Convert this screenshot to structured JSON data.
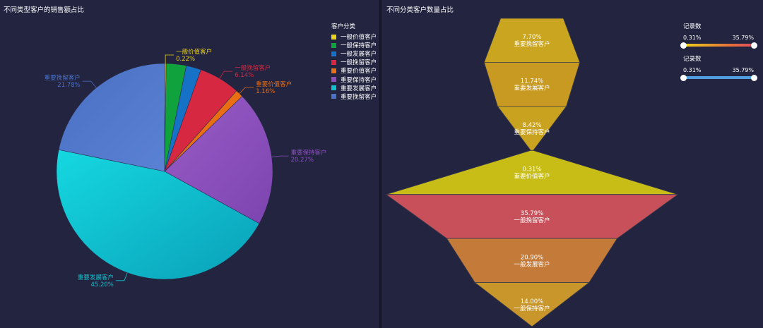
{
  "left_panel": {
    "title": "不同类型客户的销售额占比"
  },
  "right_panel": {
    "title": "不同分类客户数量占比"
  },
  "legend": {
    "title": "客户分类",
    "items": [
      {
        "label": "一般价值客户",
        "color": "#e8d41a"
      },
      {
        "label": "一般保持客户",
        "color": "#10a23c"
      },
      {
        "label": "一般发展客户",
        "color": "#1672c6"
      },
      {
        "label": "一般挽留客户",
        "color": "#d62841"
      },
      {
        "label": "重要价值客户",
        "color": "#ea6e14"
      },
      {
        "label": "重要保持客户",
        "color": "#8c4ebc"
      },
      {
        "label": "重要发展客户",
        "color": "#0ec2cd"
      },
      {
        "label": "重要挽留客户",
        "color": "#4b71c6"
      }
    ]
  },
  "sliders": [
    {
      "title": "记录数",
      "min_label": "0.31%",
      "max_label": "35.79%",
      "low_pct": 0,
      "high_pct": 100,
      "style": "warm"
    },
    {
      "title": "记录数",
      "min_label": "0.31%",
      "max_label": "35.79%",
      "low_pct": 0,
      "high_pct": 100,
      "style": "blue"
    }
  ],
  "chart_data": [
    {
      "type": "pie",
      "title": "不同类型客户的销售额占比",
      "legend_title": "客户分类",
      "legend_placement": "top-right",
      "slices": [
        {
          "name": "一般价值客户",
          "value": 0.22,
          "label": "一般价值客户",
          "value_label": "0.22%",
          "color": "#e8d41a"
        },
        {
          "name": "一般保持客户",
          "value": 3.0,
          "label": "",
          "value_label": "",
          "color": "#10a23c"
        },
        {
          "name": "一般发展客户",
          "value": 2.23,
          "label": "",
          "value_label": "",
          "color": "#1672c6"
        },
        {
          "name": "一般挽留客户",
          "value": 6.14,
          "label": "一般挽留客户",
          "value_label": "6.14%",
          "color": "#d62841"
        },
        {
          "name": "重要价值客户",
          "value": 1.16,
          "label": "重要价值客户",
          "value_label": "1.16%",
          "color": "#ea6e14"
        },
        {
          "name": "重要保持客户",
          "value": 20.27,
          "label": "重要保持客户",
          "value_label": "20.27%",
          "color": "#8c4ebc"
        },
        {
          "name": "重要发展客户",
          "value": 45.2,
          "label": "重要发展客户",
          "value_label": "45.20%",
          "color": "#0ec2cd"
        },
        {
          "name": "重要挽留客户",
          "value": 21.78,
          "label": "重要挽留客户",
          "value_label": "21.78%",
          "color": "#4b71c6"
        }
      ]
    },
    {
      "type": "funnel",
      "title": "不同分类客户数量占比",
      "segments": [
        {
          "name": "重要挽留客户",
          "value": 7.7,
          "value_label": "7.70%",
          "color": "#c9a520"
        },
        {
          "name": "重要发展客户",
          "value": 11.74,
          "value_label": "11.74%",
          "color": "#c89a22"
        },
        {
          "name": "重要保持客户",
          "value": 8.42,
          "value_label": "8.42%",
          "color": "#c9a21f"
        },
        {
          "name": "重要价值客户",
          "value": 0.31,
          "value_label": "0.31%",
          "color": "#c8bd16"
        },
        {
          "name": "一般挽留客户",
          "value": 35.79,
          "value_label": "35.79%",
          "color": "#c8505a"
        },
        {
          "name": "一般发展客户",
          "value": 20.9,
          "value_label": "20.90%",
          "color": "#c47a38"
        },
        {
          "name": "一般保持客户",
          "value": 14.0,
          "value_label": "14.00%",
          "color": "#c8962a"
        }
      ]
    }
  ]
}
